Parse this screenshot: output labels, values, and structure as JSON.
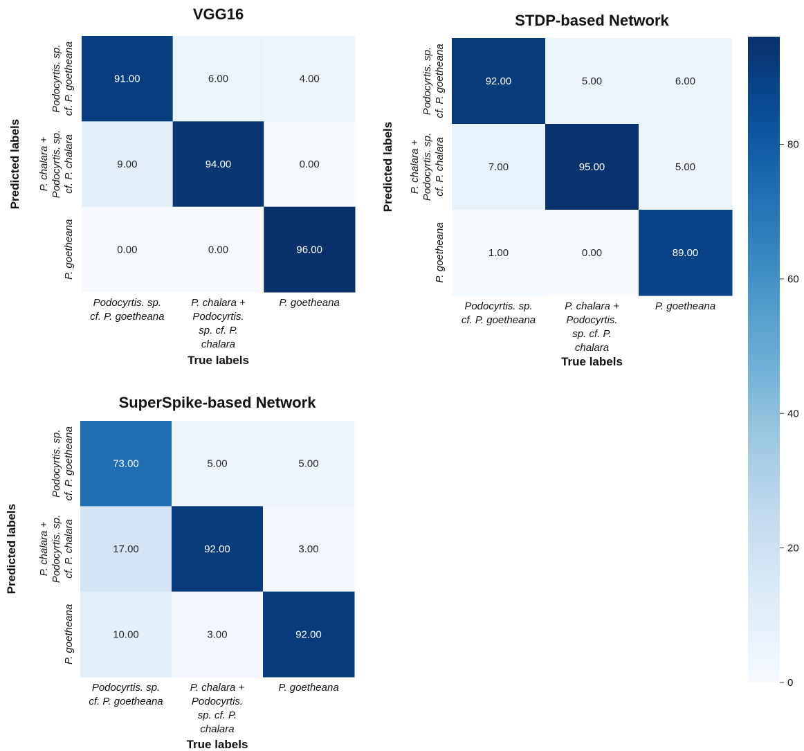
{
  "chart_data": [
    {
      "type": "heatmap",
      "title": "VGG16",
      "xlabel": "True labels",
      "ylabel": "Predicted labels",
      "x_tick_labels": [
        [
          "Podocyrtis. sp.",
          "cf. P. goetheana"
        ],
        [
          "P. chalara +",
          "Podocyrtis.",
          "sp. cf. P.",
          "chalara"
        ],
        [
          "P. goetheana"
        ]
      ],
      "y_tick_labels": [
        [
          "Podocyrtis. sp.",
          "cf. P. goetheana"
        ],
        [
          "P. chalara +",
          "Podocyrtis. sp.",
          "cf. P. chalara"
        ],
        [
          "P. goetheana"
        ]
      ],
      "values": [
        [
          91,
          6,
          4
        ],
        [
          9,
          94,
          0
        ],
        [
          0,
          0,
          96
        ]
      ],
      "cell_labels": [
        [
          "91.00",
          "6.00",
          "4.00"
        ],
        [
          "9.00",
          "94.00",
          "0.00"
        ],
        [
          "0.00",
          "0.00",
          "96.00"
        ]
      ],
      "colormap": "Blues"
    },
    {
      "type": "heatmap",
      "title": "STDP-based Network",
      "xlabel": "True labels",
      "ylabel": "Predicted labels",
      "x_tick_labels": [
        [
          "Podocyrtis. sp.",
          "cf. P. goetheana"
        ],
        [
          "P. chalara +",
          "Podocyrtis.",
          "sp. cf. P.",
          "chalara"
        ],
        [
          "P. goetheana"
        ]
      ],
      "y_tick_labels": [
        [
          "Podocyrtis. sp.",
          "cf. P. goetheana"
        ],
        [
          "P. chalara +",
          "Podocyrtis. sp.",
          "cf. P. chalara"
        ],
        [
          "P. goetheana"
        ]
      ],
      "values": [
        [
          92,
          5,
          6
        ],
        [
          7,
          95,
          5
        ],
        [
          1,
          0,
          89
        ]
      ],
      "cell_labels": [
        [
          "92.00",
          "5.00",
          "6.00"
        ],
        [
          "7.00",
          "95.00",
          "5.00"
        ],
        [
          "1.00",
          "0.00",
          "89.00"
        ]
      ],
      "colormap": "Blues"
    },
    {
      "type": "heatmap",
      "title": "SuperSpike-based Network",
      "xlabel": "True labels",
      "ylabel": "Predicted labels",
      "x_tick_labels": [
        [
          "Podocyrtis. sp.",
          "cf. P. goetheana"
        ],
        [
          "P. chalara +",
          "Podocyrtis.",
          "sp. cf. P.",
          "chalara"
        ],
        [
          "P. goetheana"
        ]
      ],
      "y_tick_labels": [
        [
          "Podocyrtis. sp.",
          "cf. P. goetheana"
        ],
        [
          "P. chalara +",
          "Podocyrtis. sp.",
          "cf. P. chalara"
        ],
        [
          "P. goetheana"
        ]
      ],
      "values": [
        [
          73,
          5,
          5
        ],
        [
          17,
          92,
          3
        ],
        [
          10,
          3,
          92
        ]
      ],
      "cell_labels": [
        [
          "73.00",
          "5.00",
          "5.00"
        ],
        [
          "17.00",
          "92.00",
          "3.00"
        ],
        [
          "10.00",
          "3.00",
          "92.00"
        ]
      ],
      "colormap": "Blues"
    }
  ],
  "colorbar": {
    "min": 0,
    "max": 96,
    "ticks": [
      0,
      20,
      40,
      60,
      80
    ],
    "colormap": "Blues"
  }
}
